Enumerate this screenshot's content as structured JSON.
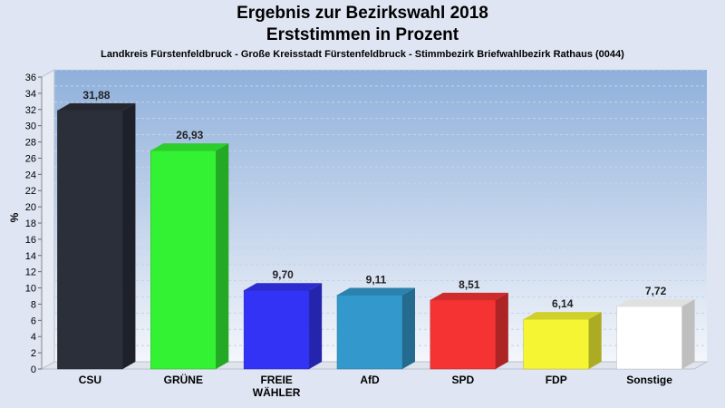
{
  "chart_data": {
    "type": "bar",
    "title": "Ergebnis zur Bezirkswahl 2018",
    "title2": "Erststimmen in Prozent",
    "subtitle": "Landkreis Fürstenfeldbruck - Große Kreisstadt Fürstenfeldbruck - Stimmbezirk Briefwahlbezirk Rathaus (0044)",
    "ylabel": "%",
    "xlabel": "",
    "ylim": [
      0,
      36
    ],
    "yticks": [
      "0",
      "2",
      "4",
      "6",
      "8",
      "10",
      "12",
      "14",
      "16",
      "18",
      "20",
      "22",
      "24",
      "26",
      "28",
      "30",
      "32",
      "34",
      "36"
    ],
    "grid": true,
    "categories": [
      {
        "lines": [
          "CSU"
        ]
      },
      {
        "lines": [
          "GRÜNE"
        ]
      },
      {
        "lines": [
          "FREIE",
          "WÄHLER"
        ]
      },
      {
        "lines": [
          "AfD"
        ]
      },
      {
        "lines": [
          "SPD"
        ]
      },
      {
        "lines": [
          "FDP"
        ]
      },
      {
        "lines": [
          "Sonstige"
        ]
      }
    ],
    "values": [
      31.88,
      26.93,
      9.7,
      9.11,
      8.51,
      6.14,
      7.72
    ],
    "value_labels": [
      "31,88",
      "26,93",
      "9,70",
      "9,11",
      "8,51",
      "6,14",
      "7,72"
    ],
    "colors": [
      "#2b2f3a",
      "#33f233",
      "#3333f5",
      "#3399cc",
      "#f53333",
      "#f5f533",
      "#ffffff"
    ]
  }
}
